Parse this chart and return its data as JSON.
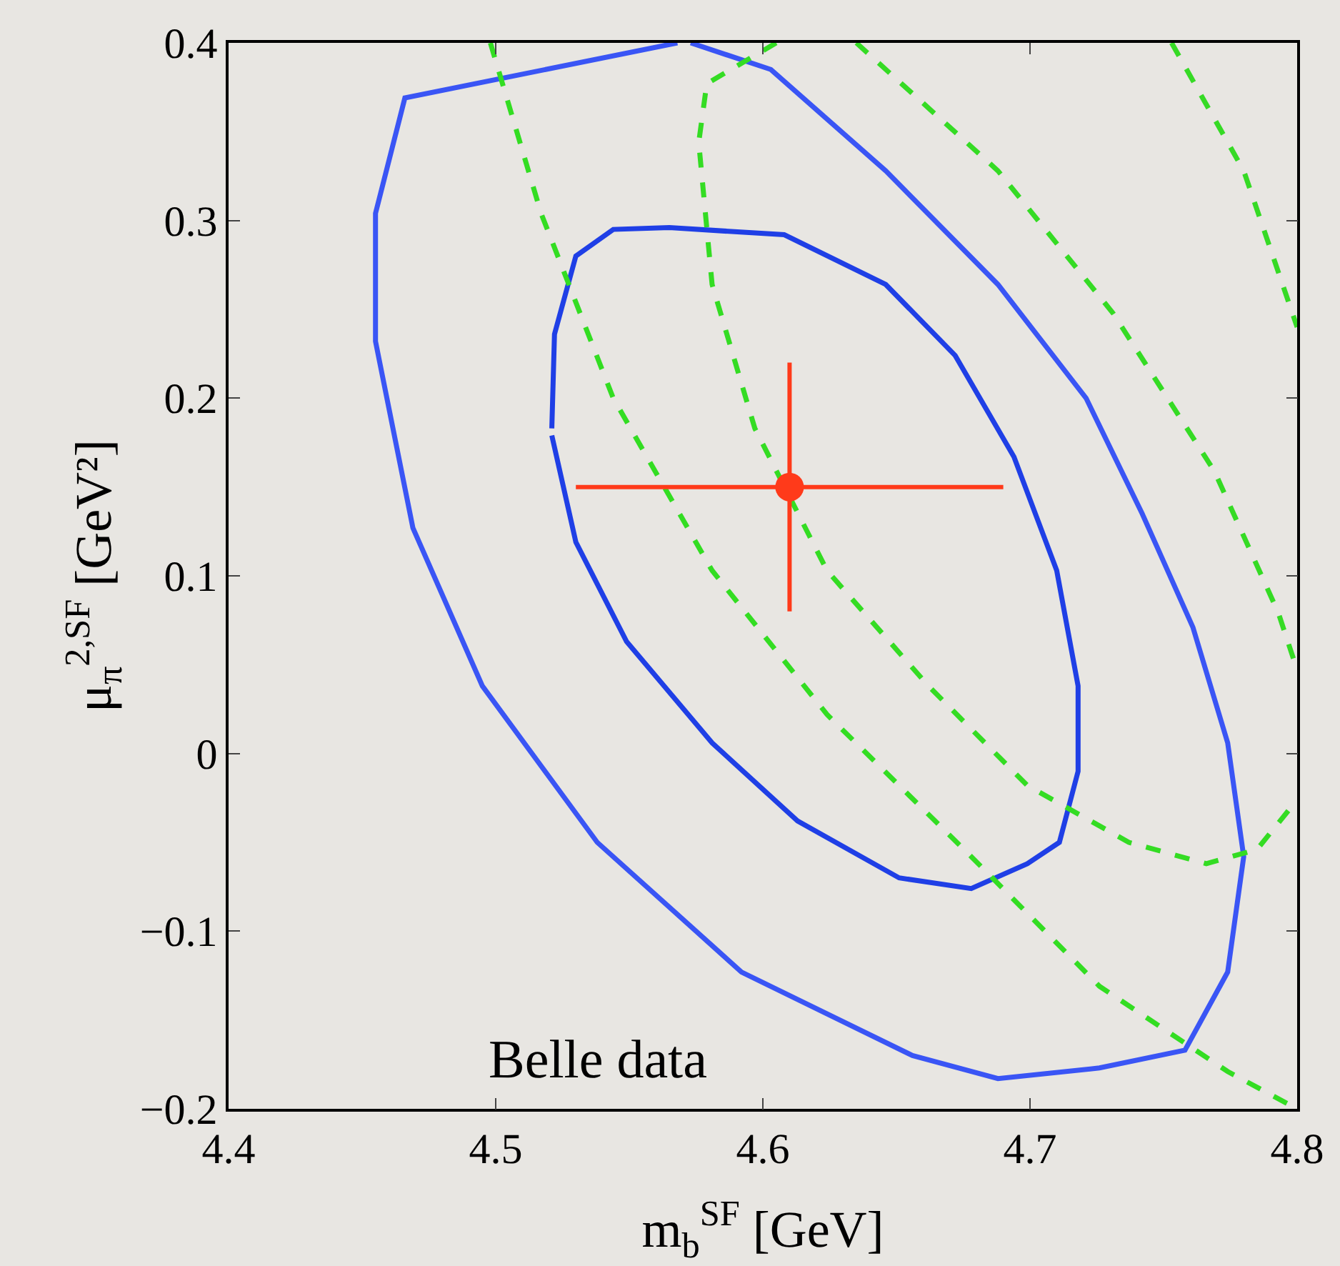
{
  "chart_data": {
    "type": "line",
    "xlabel": "m$_{b}$$^{SF}$ [GeV]",
    "ylabel": "μ$_{π}$$^{2,SF}$ [GeV²]",
    "xlim": [
      4.4,
      4.8
    ],
    "ylim": [
      -0.2,
      0.4
    ],
    "xticks": [
      4.4,
      4.5,
      4.6,
      4.7,
      4.8
    ],
    "yticks": [
      {
        "value": -0.2,
        "label": "−0.2"
      },
      {
        "value": -0.1,
        "label": "−0.1"
      },
      0,
      0.1,
      0.2,
      0.3,
      0.4
    ],
    "grid": false,
    "annotations": [
      "Belle data"
    ],
    "series": [
      {
        "color": "#1f3fe6",
        "line_style": "solid",
        "x": [
          4.521,
          4.522,
          4.53,
          4.544,
          4.565,
          4.608,
          4.646,
          4.672,
          4.694,
          4.71,
          4.718,
          4.718,
          4.711,
          4.699,
          4.678,
          4.651,
          4.613,
          4.581,
          4.549,
          4.53,
          4.521
        ],
        "values": [
          0.183,
          0.236,
          0.28,
          0.295,
          0.296,
          0.292,
          0.264,
          0.224,
          0.167,
          0.103,
          0.038,
          -0.01,
          -0.05,
          -0.062,
          -0.076,
          -0.07,
          -0.038,
          0.006,
          0.063,
          0.119,
          0.179
        ]
      },
      {
        "color": "#3a55f5",
        "line_style": "solid",
        "x": [
          4.568,
          4.466,
          4.455,
          4.455,
          4.469,
          4.495,
          4.538,
          4.592,
          4.656,
          4.688,
          4.726,
          4.758,
          4.774,
          4.78,
          4.774,
          4.761,
          4.742,
          4.721,
          4.688,
          4.646,
          4.603,
          4.573
        ],
        "values": [
          0.4,
          0.369,
          0.304,
          0.232,
          0.127,
          0.038,
          -0.05,
          -0.123,
          -0.17,
          -0.183,
          -0.177,
          -0.167,
          -0.123,
          -0.058,
          0.006,
          0.071,
          0.135,
          0.2,
          0.264,
          0.328,
          0.385,
          0.4
        ]
      },
      {
        "color": "#33dd22",
        "line_style": "dashed",
        "x": [
          4.498,
          4.517,
          4.544,
          4.581,
          4.624,
          4.678,
          4.726,
          4.774,
          4.8
        ],
        "values": [
          0.4,
          0.304,
          0.2,
          0.103,
          0.022,
          -0.058,
          -0.131,
          -0.179,
          -0.2
        ]
      },
      {
        "color": "#34dc23",
        "line_style": "dashed",
        "x": [
          4.605,
          4.579,
          4.576,
          4.581,
          4.597,
          4.624,
          4.662,
          4.699,
          4.737,
          4.766,
          4.785,
          4.8
        ],
        "values": [
          0.4,
          0.377,
          0.344,
          0.264,
          0.183,
          0.103,
          0.038,
          -0.018,
          -0.05,
          -0.062,
          -0.054,
          -0.026
        ]
      },
      {
        "color": "#35db24",
        "line_style": "dashed",
        "x": [
          4.635,
          4.688,
          4.731,
          4.769,
          4.793,
          4.8
        ],
        "values": [
          0.4,
          0.328,
          0.248,
          0.159,
          0.079,
          0.047
        ]
      },
      {
        "color": "#36da25",
        "line_style": "dashed",
        "x": [
          4.753,
          4.78,
          4.8
        ],
        "values": [
          0.4,
          0.328,
          0.24
        ]
      },
      {
        "type": "scatter",
        "color": "#ff3a1a",
        "marker": "circle",
        "x": [
          4.61
        ],
        "values": [
          0.15
        ],
        "errors": [
          0.07
        ],
        "xerrors": [
          0.08
        ]
      }
    ]
  }
}
